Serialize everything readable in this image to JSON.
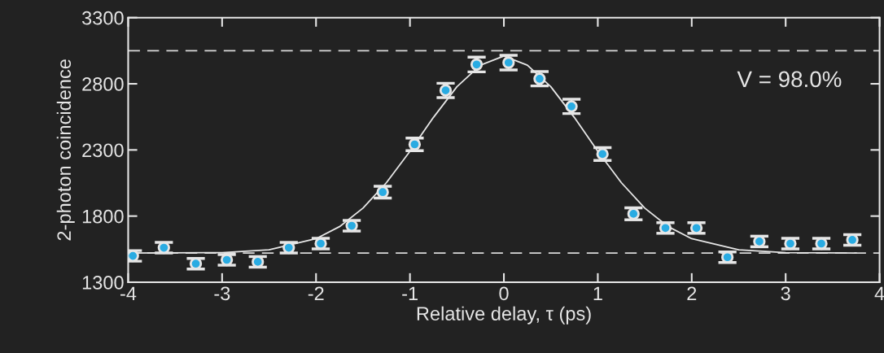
{
  "chart_data": {
    "type": "scatter",
    "xlabel": "Relative delay, τ (ps)",
    "ylabel": "2-photon coincidence",
    "xlim": [
      -4,
      4
    ],
    "xticks": [
      -4,
      -3,
      -2,
      -1,
      0,
      1,
      2,
      3,
      4
    ],
    "ylim": [
      1300,
      3300
    ],
    "yticks": [
      1300,
      1800,
      2300,
      2800,
      3300
    ],
    "grid": false,
    "series": [
      {
        "color": "#29abe2",
        "marker": "circle",
        "x": [
          -3.95,
          -3.62,
          -3.28,
          -2.95,
          -2.62,
          -2.29,
          -1.95,
          -1.62,
          -1.29,
          -0.95,
          -0.62,
          -0.29,
          0.05,
          0.38,
          0.72,
          1.05,
          1.38,
          1.72,
          2.05,
          2.38,
          2.72,
          3.05,
          3.38,
          3.71
        ],
        "values": [
          1499,
          1561,
          1440,
          1469,
          1454,
          1561,
          1592,
          1727,
          1981,
          2342,
          2750,
          2946,
          2960,
          2838,
          2629,
          2269,
          1817,
          1710,
          1710,
          1489,
          1608,
          1592,
          1592,
          1620
        ],
        "errors": [
          40,
          40,
          40,
          40,
          40,
          40,
          40,
          40,
          45,
          48,
          54,
          56,
          56,
          54,
          54,
          48,
          45,
          40,
          40,
          40,
          40,
          40,
          40,
          40
        ]
      },
      {
        "type": "line",
        "color": "#e6e6e6",
        "x": [
          -4,
          -3,
          -2.5,
          -2,
          -1.75,
          -1.5,
          -1.25,
          -1,
          -0.75,
          -0.5,
          -0.25,
          0,
          0.25,
          0.5,
          0.75,
          1,
          1.25,
          1.5,
          1.75,
          2,
          2.5,
          3,
          3.75
        ],
        "values": [
          1520,
          1524,
          1545,
          1629,
          1720,
          1860,
          2053,
          2290,
          2546,
          2778,
          2941,
          3010,
          2941,
          2778,
          2546,
          2290,
          2053,
          1860,
          1720,
          1629,
          1545,
          1524,
          1520
        ]
      }
    ],
    "ref_lines": [
      {
        "axis": "y",
        "value": 3050,
        "color": "#d9d9d9",
        "line_style": "dashed"
      },
      {
        "axis": "y",
        "value": 1520,
        "color": "#d9d9d9",
        "line_style": "dashed"
      }
    ],
    "annotations": [
      "V = 98.0%"
    ]
  }
}
